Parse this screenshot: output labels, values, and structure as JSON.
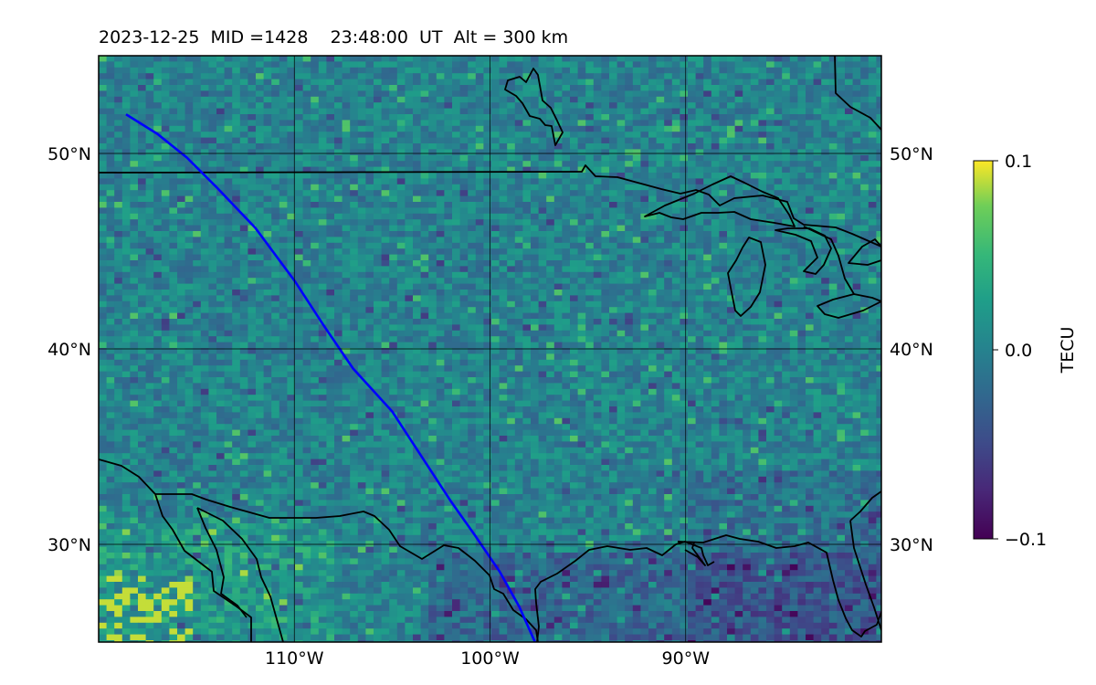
{
  "title": "2023-12-25  MID =1428    23:48:00  UT  Alt = 300 km",
  "map": {
    "lon_range": [
      -120,
      -80
    ],
    "lat_range": [
      25,
      55
    ],
    "lat_ticks": [
      {
        "value": 30,
        "label": "30°N"
      },
      {
        "value": 40,
        "label": "40°N"
      },
      {
        "value": 50,
        "label": "50°N"
      }
    ],
    "lon_ticks": [
      {
        "value": -110,
        "label": "110°W"
      },
      {
        "value": -100,
        "label": "100°W"
      },
      {
        "value": -90,
        "label": "90°W"
      }
    ],
    "grid": true,
    "satellite_track_color": "#0000ff",
    "satellite_track": [
      [
        -118.6,
        52.0
      ],
      [
        -117,
        51.0
      ],
      [
        -115.5,
        49.8
      ],
      [
        -114,
        48.3
      ],
      [
        -112,
        46.2
      ],
      [
        -110,
        43.5
      ],
      [
        -108.5,
        41.2
      ],
      [
        -107,
        39.0
      ],
      [
        -105,
        36.8
      ],
      [
        -103.5,
        34.5
      ],
      [
        -102,
        32.2
      ],
      [
        -100.8,
        30.5
      ],
      [
        -99.5,
        28.6
      ],
      [
        -98.5,
        26.8
      ],
      [
        -97.7,
        25.0
      ]
    ],
    "boundary_color": "#000000"
  },
  "colorbar": {
    "label": "TECU",
    "colormap": "viridis",
    "min": -0.1,
    "max": 0.1,
    "ticks": [
      {
        "value": 0.1,
        "label": "0.1"
      },
      {
        "value": 0.0,
        "label": "0.0"
      },
      {
        "value": -0.1,
        "label": "−0.1"
      }
    ]
  }
}
